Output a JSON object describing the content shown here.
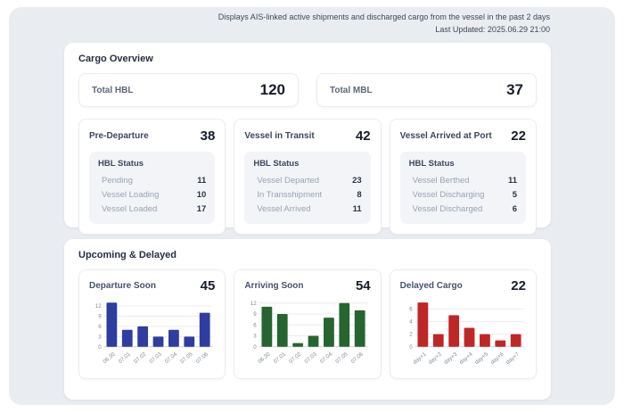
{
  "header": {
    "note_line1": "Displays AIS-linked active shipments and discharged cargo from the vessel in the past 2 days",
    "note_line2": "Last Updated: 2025.06.29 21:00"
  },
  "cargo_overview": {
    "title": "Cargo Overview",
    "totals": [
      {
        "label": "Total HBL",
        "value": "120"
      },
      {
        "label": "Total MBL",
        "value": "37"
      }
    ],
    "status_cards": [
      {
        "title": "Pre-Departure",
        "count": "38",
        "sub_title": "HBL Status",
        "rows": [
          {
            "label": "Pending",
            "value": "11"
          },
          {
            "label": "Vessel Loading",
            "value": "10"
          },
          {
            "label": "Vessel Loaded",
            "value": "17"
          }
        ]
      },
      {
        "title": "Vessel in Transit",
        "count": "42",
        "sub_title": "HBL Status",
        "rows": [
          {
            "label": "Vessel Departed",
            "value": "23"
          },
          {
            "label": "In Transshipment",
            "value": "8"
          },
          {
            "label": "Vessel Arrived",
            "value": "11"
          }
        ]
      },
      {
        "title": "Vessel Arrived at Port",
        "count": "22",
        "sub_title": "HBL Status",
        "rows": [
          {
            "label": "Vessel Berthed",
            "value": "11"
          },
          {
            "label": "Vessel Discharging",
            "value": "5"
          },
          {
            "label": "Vessel Discharged",
            "value": "6"
          }
        ]
      }
    ]
  },
  "upcoming_delayed": {
    "title": "Upcoming & Delayed"
  },
  "chart_data": [
    {
      "type": "bar",
      "title": "Departure Soon",
      "total": "45",
      "categories": [
        "06.30",
        "07.01",
        "07.02",
        "07.03",
        "07.04",
        "07.05",
        "07.06"
      ],
      "values": [
        13,
        5,
        6,
        3,
        5,
        3,
        10
      ],
      "yticks": [
        0,
        3,
        6,
        9,
        12
      ],
      "ymax": 13.4,
      "color": "#2f3da0",
      "grid": true,
      "xlabel": "",
      "ylabel": ""
    },
    {
      "type": "bar",
      "title": "Arriving Soon",
      "total": "54",
      "categories": [
        "06.30",
        "07.01",
        "07.02",
        "07.03",
        "07.04",
        "07.05",
        "07.06"
      ],
      "values": [
        11,
        9,
        1,
        3,
        8,
        12,
        10
      ],
      "yticks": [
        0,
        3,
        6,
        9,
        12
      ],
      "ymax": 12.5,
      "color": "#266430",
      "grid": true,
      "xlabel": "",
      "ylabel": ""
    },
    {
      "type": "bar",
      "title": "Delayed Cargo",
      "total": "22",
      "categories": [
        "day+1",
        "day+2",
        "day+3",
        "day+4",
        "day+5",
        "day+6",
        "day+7"
      ],
      "values": [
        7,
        2,
        5,
        3,
        2,
        1,
        2
      ],
      "yticks": [
        0,
        2,
        4,
        6
      ],
      "ymax": 7.2,
      "color": "#bf2626",
      "grid": true,
      "xlabel": "",
      "ylabel": ""
    }
  ],
  "colors": {
    "panel_bg": "#e9edf2",
    "card_bg": "#ffffff",
    "inner_panel_bg": "#f2f4f8",
    "departure_bar": "#2f3da0",
    "arriving_bar": "#266430",
    "delayed_bar": "#bf2626",
    "gridline": "#e9ebf0",
    "axis_text": "#7f8999"
  }
}
